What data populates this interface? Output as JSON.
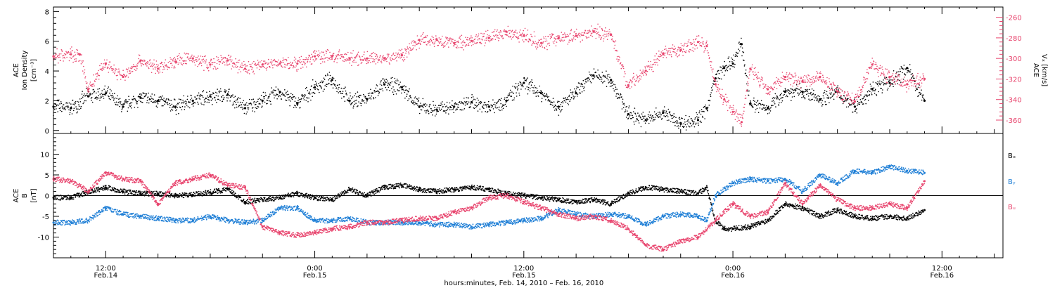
{
  "colors": {
    "density": "#000000",
    "vx": "#e8456e",
    "bx": "#000000",
    "by": "#1f7fd6",
    "bz": "#e8456e",
    "axis": "#000000"
  },
  "figure": {
    "xaxis": {
      "title": "hours:minutes, Feb. 14, 2010 – Feb. 16, 2010",
      "ticks": [
        {
          "time": "12:00",
          "date": "Feb.14",
          "hours": 12
        },
        {
          "time": "0:00",
          "date": "Feb.15",
          "hours": 24
        },
        {
          "time": "12:00",
          "date": "Feb.15",
          "hours": 36
        },
        {
          "time": "0:00",
          "date": "Feb.16",
          "hours": 48
        },
        {
          "time": "12:00",
          "date": "Feb.16",
          "hours": 60
        }
      ]
    }
  },
  "chart_data": [
    {
      "type": "scatter",
      "xlim": [
        9.0,
        63.5
      ],
      "x_unit": "hours since Feb 14 00:00",
      "y_left": {
        "label_lines": [
          "ACE",
          "Ion Density",
          "[cm⁻³]"
        ],
        "ticks": [
          "0",
          "2",
          "4",
          "6",
          "8"
        ],
        "ylim": [
          -0.2,
          8.3
        ]
      },
      "y_right": {
        "label_lines": [
          "ACE",
          "Vₓ [km/s]"
        ],
        "ticks": [
          "-260",
          "-280",
          "-300",
          "-320",
          "-340",
          "-360"
        ],
        "ylim": [
          -373,
          -250
        ]
      },
      "series": [
        {
          "name": "",
          "axis": "left",
          "color": "#000000",
          "x": [
            9.0,
            10.0,
            11.0,
            12.0,
            13.0,
            14.0,
            15.0,
            16.0,
            17.0,
            18.0,
            19.0,
            20.0,
            21.0,
            22.0,
            23.0,
            24.0,
            25.0,
            26.0,
            27.0,
            28.0,
            29.0,
            30.0,
            31.0,
            32.0,
            33.0,
            34.0,
            35.0,
            36.0,
            37.0,
            38.0,
            39.0,
            40.0,
            41.0,
            42.0,
            43.0,
            44.0,
            45.0,
            46.0,
            46.5,
            47.0,
            47.5,
            48.0,
            48.5,
            49.0,
            50.0,
            51.0,
            52.0,
            53.0,
            54.0,
            55.0,
            56.0,
            57.0,
            58.0,
            59.0
          ],
          "y": [
            1.6,
            1.5,
            2.3,
            2.5,
            1.6,
            2.2,
            2.0,
            1.6,
            2.0,
            2.3,
            2.4,
            1.5,
            2.0,
            2.6,
            1.8,
            2.9,
            3.4,
            2.0,
            2.1,
            3.1,
            2.9,
            1.6,
            1.4,
            1.6,
            1.9,
            1.6,
            2.0,
            3.2,
            2.5,
            1.6,
            2.5,
            3.7,
            3.4,
            1.1,
            0.7,
            1.2,
            0.5,
            0.7,
            1.5,
            3.5,
            4.2,
            4.5,
            5.8,
            1.8,
            1.5,
            2.6,
            2.6,
            2.1,
            2.6,
            1.6,
            2.8,
            3.2,
            4.2,
            2.0
          ]
        },
        {
          "name": "",
          "axis": "right",
          "color": "#e8456e",
          "x": [
            9.0,
            10.0,
            10.5,
            11.0,
            12.0,
            13.0,
            14.0,
            15.0,
            16.0,
            17.0,
            18.0,
            19.0,
            20.0,
            21.0,
            22.0,
            23.0,
            24.0,
            25.0,
            26.0,
            27.0,
            28.0,
            29.0,
            30.0,
            31.0,
            32.0,
            33.0,
            34.0,
            35.0,
            36.0,
            37.0,
            38.0,
            39.0,
            40.0,
            41.0,
            42.0,
            43.0,
            44.0,
            45.0,
            46.0,
            46.5,
            47.0,
            47.5,
            48.0,
            48.5,
            49.0,
            50.0,
            51.0,
            52.0,
            53.0,
            54.0,
            55.0,
            56.0,
            57.0,
            58.0,
            59.0
          ],
          "y": [
            -298,
            -296,
            -296,
            -330,
            -305,
            -318,
            -302,
            -310,
            -303,
            -300,
            -306,
            -302,
            -310,
            -306,
            -305,
            -305,
            -298,
            -298,
            -300,
            -300,
            -300,
            -297,
            -282,
            -282,
            -285,
            -283,
            -280,
            -274,
            -278,
            -285,
            -280,
            -278,
            -274,
            -277,
            -326,
            -312,
            -296,
            -292,
            -284,
            -288,
            -325,
            -340,
            -352,
            -362,
            -310,
            -330,
            -318,
            -322,
            -318,
            -332,
            -342,
            -306,
            -318,
            -325,
            -320
          ]
        }
      ]
    },
    {
      "type": "line",
      "xlim": [
        9.0,
        63.5
      ],
      "x_unit": "hours since Feb 14 00:00",
      "y_left": {
        "label_lines": [
          "ACE",
          "B",
          "[nT]"
        ],
        "ticks": [
          "-10",
          "-5",
          "0",
          "5",
          "10"
        ],
        "ylim": [
          -15,
          15
        ]
      },
      "zero_line": true,
      "series": [
        {
          "name": "Bₓ",
          "color": "#000000",
          "x": [
            9.0,
            10.0,
            11.0,
            12.0,
            13.0,
            14.0,
            15.0,
            16.0,
            17.0,
            18.0,
            19.0,
            20.0,
            21.0,
            22.0,
            23.0,
            24.0,
            25.0,
            26.0,
            27.0,
            28.0,
            29.0,
            30.0,
            31.0,
            32.0,
            33.0,
            34.0,
            35.0,
            36.0,
            37.0,
            38.0,
            39.0,
            40.0,
            41.0,
            42.0,
            43.0,
            44.0,
            45.0,
            46.0,
            46.5,
            47.0,
            47.5,
            48.0,
            49.0,
            50.0,
            51.0,
            52.0,
            53.0,
            54.0,
            55.0,
            56.0,
            57.0,
            58.0,
            59.0
          ],
          "y": [
            -0.5,
            -0.5,
            0.8,
            2.0,
            1.0,
            0.5,
            0.5,
            0.0,
            0.2,
            0.8,
            1.5,
            -1.5,
            -1.0,
            -0.5,
            0.5,
            -0.5,
            -1.0,
            1.5,
            0.0,
            2.0,
            2.5,
            1.5,
            1.0,
            1.5,
            2.0,
            1.5,
            0.5,
            0.0,
            -0.5,
            -1.0,
            -1.5,
            -1.0,
            -2.0,
            0.5,
            2.0,
            1.5,
            1.0,
            0.5,
            2.0,
            -6.0,
            -8.0,
            -8.0,
            -7.5,
            -6.0,
            -2.0,
            -3.0,
            -5.0,
            -3.5,
            -5.0,
            -5.5,
            -5.0,
            -5.5,
            -3.5
          ]
        },
        {
          "name": "Bᵧ",
          "color": "#1f7fd6",
          "x": [
            9.0,
            10.0,
            11.0,
            12.0,
            13.0,
            14.0,
            15.0,
            16.0,
            17.0,
            18.0,
            19.0,
            20.0,
            21.0,
            22.0,
            23.0,
            24.0,
            25.0,
            26.0,
            27.0,
            28.0,
            29.0,
            30.0,
            31.0,
            32.0,
            33.0,
            34.0,
            35.0,
            36.0,
            37.0,
            38.0,
            39.0,
            40.0,
            41.0,
            42.0,
            43.0,
            44.0,
            45.0,
            46.0,
            46.5,
            47.0,
            48.0,
            49.0,
            50.0,
            51.0,
            52.0,
            53.0,
            54.0,
            55.0,
            56.0,
            57.0,
            58.0,
            59.0
          ],
          "y": [
            -6.5,
            -6.5,
            -6.0,
            -3.0,
            -4.5,
            -5.0,
            -5.5,
            -6.0,
            -6.0,
            -5.0,
            -6.0,
            -6.5,
            -6.0,
            -3.0,
            -3.0,
            -6.0,
            -6.0,
            -5.5,
            -6.5,
            -6.5,
            -6.5,
            -6.5,
            -7.0,
            -7.0,
            -7.5,
            -7.0,
            -6.5,
            -6.0,
            -5.5,
            -3.5,
            -4.5,
            -5.0,
            -4.5,
            -5.0,
            -7.0,
            -5.0,
            -4.5,
            -5.0,
            -6.0,
            0.0,
            3.0,
            4.0,
            3.5,
            4.0,
            1.0,
            5.0,
            3.0,
            6.0,
            5.5,
            7.0,
            6.0,
            5.5
          ]
        },
        {
          "name": "Bᵤ",
          "color": "#e8456e",
          "x": [
            9.0,
            10.0,
            11.0,
            12.0,
            13.0,
            14.0,
            15.0,
            16.0,
            17.0,
            18.0,
            19.0,
            20.0,
            21.0,
            22.0,
            23.0,
            24.0,
            25.0,
            26.0,
            27.0,
            28.0,
            29.0,
            30.0,
            31.0,
            32.0,
            33.0,
            34.0,
            35.0,
            36.0,
            37.0,
            38.0,
            39.0,
            40.0,
            41.0,
            42.0,
            43.0,
            44.0,
            45.0,
            46.0,
            47.0,
            48.0,
            49.0,
            50.0,
            51.0,
            52.0,
            53.0,
            54.0,
            55.0,
            56.0,
            57.0,
            58.0,
            59.0
          ],
          "y": [
            4.0,
            3.5,
            1.0,
            5.5,
            4.0,
            3.5,
            -2.0,
            3.0,
            4.0,
            5.0,
            2.5,
            2.0,
            -7.5,
            -9.0,
            -9.5,
            -9.0,
            -8.0,
            -7.5,
            -6.5,
            -6.5,
            -6.0,
            -5.5,
            -5.5,
            -4.0,
            -3.0,
            -0.5,
            0.0,
            -1.5,
            -3.0,
            -4.5,
            -5.5,
            -5.0,
            -6.0,
            -8.0,
            -12.0,
            -13.0,
            -11.0,
            -10.0,
            -6.0,
            -2.0,
            -5.0,
            -4.0,
            3.0,
            -2.0,
            2.5,
            -1.0,
            -3.0,
            -3.0,
            -2.0,
            -3.0,
            3.5
          ]
        }
      ]
    }
  ]
}
